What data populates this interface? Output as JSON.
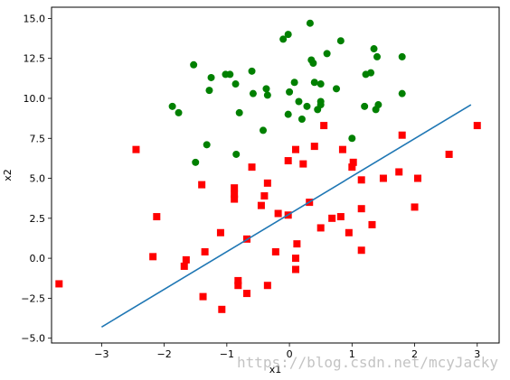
{
  "chart_data": {
    "type": "scatter",
    "xlabel": "x1",
    "ylabel": "x2",
    "xlim": [
      -3.8,
      3.35
    ],
    "ylim": [
      -5.3,
      15.7
    ],
    "xticks": [
      -3,
      -2,
      -1,
      0,
      1,
      2,
      3
    ],
    "yticks": [
      -5.0,
      -2.5,
      0.0,
      2.5,
      5.0,
      7.5,
      10.0,
      12.5,
      15.0
    ],
    "xtick_labels": [
      "−3",
      "−2",
      "−1",
      "0",
      "1",
      "2",
      "3"
    ],
    "ytick_labels": [
      "−5.0",
      "−2.5",
      "0.0",
      "2.5",
      "5.0",
      "7.5",
      "10.0",
      "12.5",
      "15.0"
    ],
    "grid": false,
    "series": [
      {
        "marker": "circle",
        "color": "#008000",
        "points": [
          [
            0.33,
            14.7
          ],
          [
            -0.02,
            14.0
          ],
          [
            -0.1,
            13.7
          ],
          [
            0.82,
            13.6
          ],
          [
            1.35,
            13.1
          ],
          [
            1.4,
            12.6
          ],
          [
            1.8,
            12.6
          ],
          [
            0.35,
            12.4
          ],
          [
            0.38,
            12.2
          ],
          [
            0.6,
            12.8
          ],
          [
            -1.53,
            12.1
          ],
          [
            -0.95,
            11.5
          ],
          [
            -1.02,
            11.5
          ],
          [
            -1.25,
            11.3
          ],
          [
            -0.6,
            11.7
          ],
          [
            1.3,
            11.6
          ],
          [
            1.22,
            11.5
          ],
          [
            0.08,
            11.0
          ],
          [
            0.4,
            11.0
          ],
          [
            0.5,
            10.9
          ],
          [
            -0.86,
            10.9
          ],
          [
            -0.37,
            10.6
          ],
          [
            0.75,
            10.6
          ],
          [
            -1.28,
            10.5
          ],
          [
            -0.35,
            10.2
          ],
          [
            -0.58,
            10.3
          ],
          [
            0.0,
            10.4
          ],
          [
            1.8,
            10.3
          ],
          [
            0.15,
            9.8
          ],
          [
            0.5,
            9.8
          ],
          [
            0.28,
            9.5
          ],
          [
            0.5,
            9.6
          ],
          [
            0.45,
            9.3
          ],
          [
            1.38,
            9.3
          ],
          [
            1.42,
            9.6
          ],
          [
            1.2,
            9.5
          ],
          [
            -1.87,
            9.5
          ],
          [
            -1.77,
            9.1
          ],
          [
            -0.8,
            9.1
          ],
          [
            -0.02,
            9.0
          ],
          [
            0.2,
            8.7
          ],
          [
            -0.42,
            8.0
          ],
          [
            1.0,
            7.5
          ],
          [
            -1.32,
            7.1
          ],
          [
            -0.85,
            6.5
          ],
          [
            -1.5,
            6.0
          ]
        ]
      },
      {
        "marker": "square",
        "color": "#ff0000",
        "points": [
          [
            3.0,
            8.3
          ],
          [
            0.55,
            8.3
          ],
          [
            1.8,
            7.7
          ],
          [
            -2.45,
            6.8
          ],
          [
            0.4,
            7.0
          ],
          [
            0.85,
            6.8
          ],
          [
            0.1,
            6.8
          ],
          [
            1.02,
            6.0
          ],
          [
            -0.02,
            6.1
          ],
          [
            0.22,
            5.9
          ],
          [
            -0.6,
            5.7
          ],
          [
            1.0,
            5.7
          ],
          [
            1.75,
            5.4
          ],
          [
            2.55,
            6.5
          ],
          [
            2.05,
            5.0
          ],
          [
            1.5,
            5.0
          ],
          [
            1.15,
            4.9
          ],
          [
            -1.4,
            4.6
          ],
          [
            -0.35,
            4.7
          ],
          [
            -0.88,
            4.4
          ],
          [
            -0.88,
            4.0
          ],
          [
            -0.4,
            3.9
          ],
          [
            -0.88,
            3.7
          ],
          [
            0.32,
            3.5
          ],
          [
            -0.45,
            3.3
          ],
          [
            2.0,
            3.2
          ],
          [
            1.15,
            3.1
          ],
          [
            -0.18,
            2.8
          ],
          [
            -0.02,
            2.7
          ],
          [
            -2.12,
            2.6
          ],
          [
            0.82,
            2.6
          ],
          [
            0.68,
            2.5
          ],
          [
            1.32,
            2.1
          ],
          [
            0.5,
            1.9
          ],
          [
            -1.1,
            1.6
          ],
          [
            0.95,
            1.6
          ],
          [
            -0.68,
            1.2
          ],
          [
            0.12,
            0.9
          ],
          [
            1.15,
            0.5
          ],
          [
            -1.35,
            0.4
          ],
          [
            -0.22,
            0.4
          ],
          [
            -2.18,
            0.1
          ],
          [
            -1.65,
            -0.1
          ],
          [
            0.1,
            0.0
          ],
          [
            -1.68,
            -0.5
          ],
          [
            0.1,
            -0.7
          ],
          [
            -3.68,
            -1.6
          ],
          [
            -0.82,
            -1.4
          ],
          [
            -0.82,
            -1.7
          ],
          [
            -0.35,
            -1.7
          ],
          [
            -0.68,
            -2.2
          ],
          [
            -1.38,
            -2.4
          ],
          [
            -1.08,
            -3.2
          ]
        ]
      },
      {
        "type": "line",
        "color": "#1f77b4",
        "points": [
          [
            -3.0,
            -4.3
          ],
          [
            2.9,
            9.6
          ]
        ]
      }
    ]
  },
  "watermark": "https://blog.csdn.net/mcyJacky"
}
